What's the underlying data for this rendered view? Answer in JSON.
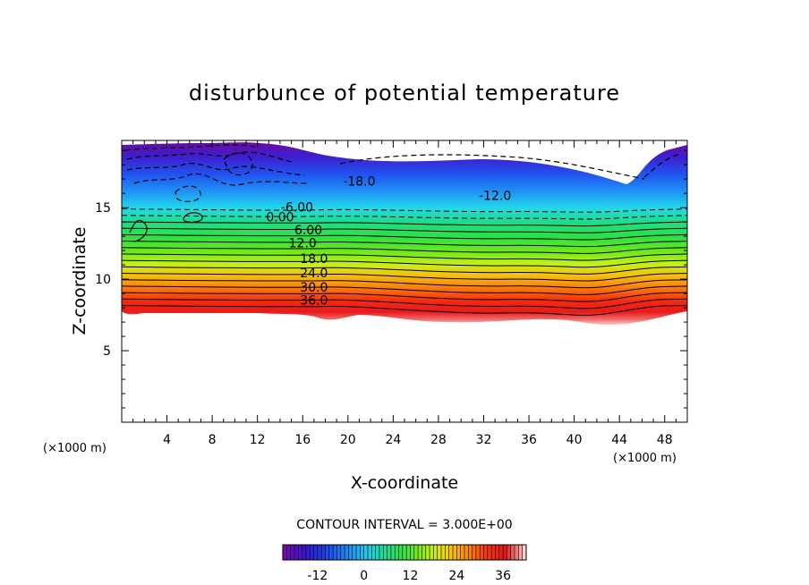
{
  "chart_data": {
    "type": "contour",
    "title": "disturbunce of potential temperature",
    "xlabel": "X-coordinate",
    "ylabel": "Z-coordinate",
    "x_unit": "(×1000 m)",
    "z_unit": "(×1000 m)",
    "xlim": [
      0,
      50
    ],
    "ylim": [
      0,
      19.7
    ],
    "x_ticks": [
      "4",
      "8",
      "12",
      "16",
      "20",
      "24",
      "28",
      "32",
      "36",
      "40",
      "44",
      "48"
    ],
    "y_ticks": [
      "5",
      "10",
      "15"
    ],
    "contour_interval_text": "CONTOUR INTERVAL = 3.000E+00",
    "contour_labels": [
      {
        "text": "-18.0",
        "x": 21,
        "z": 16.6
      },
      {
        "text": "-12.0",
        "x": 33,
        "z": 15.6
      },
      {
        "text": "-6.00",
        "x": 15.5,
        "z": 14.8
      },
      {
        "text": "0.00",
        "x": 14,
        "z": 14.1
      },
      {
        "text": "6.00",
        "x": 16.5,
        "z": 13.2
      },
      {
        "text": "12.0",
        "x": 16,
        "z": 12.3
      },
      {
        "text": "18.0",
        "x": 17,
        "z": 11.2
      },
      {
        "text": "24.0",
        "x": 17,
        "z": 10.2
      },
      {
        "text": "30.0",
        "x": 17,
        "z": 9.2
      },
      {
        "text": "36.0",
        "x": 17,
        "z": 8.3
      }
    ],
    "colorbar": {
      "min": -21,
      "max": 42,
      "ticks": [
        "-12",
        "0",
        "12",
        "24",
        "36"
      ]
    }
  }
}
